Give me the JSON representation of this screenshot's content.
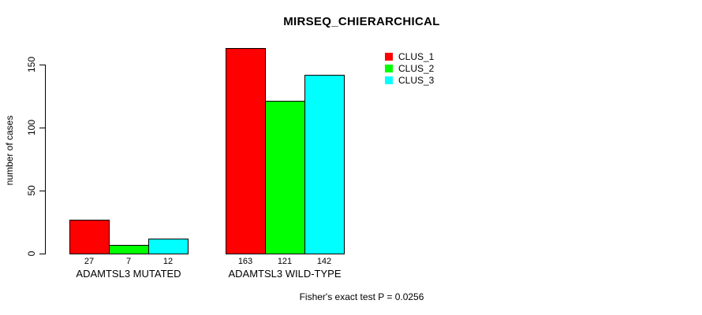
{
  "chart_data": {
    "type": "bar",
    "title": "MIRSEQ_CHIERARCHICAL",
    "ylabel": "number of cases",
    "xlabel": "",
    "categories": [
      "ADAMTSL3 MUTATED",
      "ADAMTSL3 WILD-TYPE"
    ],
    "series": [
      {
        "name": "CLUS_1",
        "color": "#FF0000",
        "values": [
          27,
          163
        ]
      },
      {
        "name": "CLUS_2",
        "color": "#00FF00",
        "values": [
          7,
          121
        ]
      },
      {
        "name": "CLUS_3",
        "color": "#00FFFF",
        "values": [
          12,
          142
        ]
      }
    ],
    "y_ticks": [
      0,
      50,
      100,
      150
    ],
    "ylim": [
      0,
      163
    ],
    "grid": false,
    "legend_position": "top-right",
    "bar_border_color": "#000000",
    "annotation": "Fisher's exact test P = 0.0256"
  }
}
